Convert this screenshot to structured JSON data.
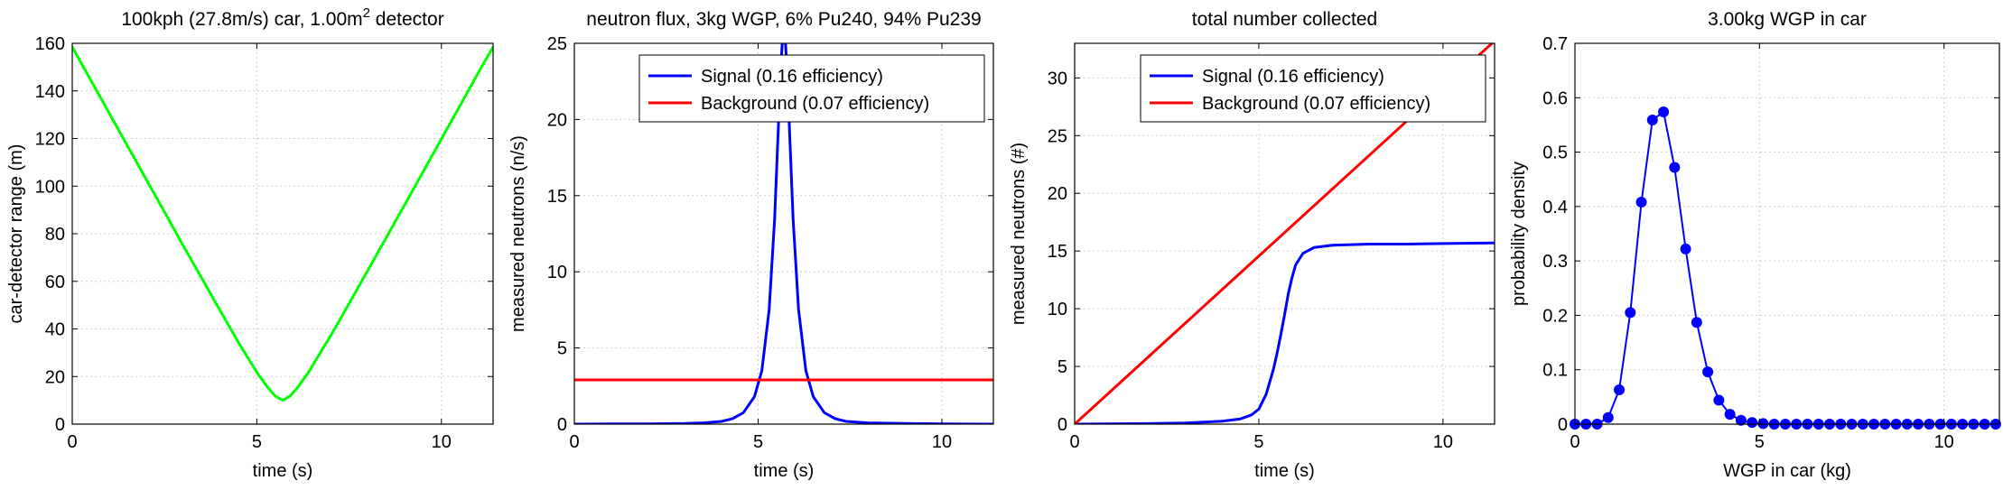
{
  "figure": {
    "background": "#ffffff"
  },
  "chart_data": [
    {
      "type": "line",
      "title": "100kph (27.8m/s) car,  1.00m",
      "title_superscript": "2",
      "title_suffix": " detector",
      "xlabel": "time (s)",
      "ylabel": "car-detector range (m)",
      "xlim": [
        0,
        11.4
      ],
      "ylim": [
        0,
        160
      ],
      "xticks": [
        0,
        5,
        10
      ],
      "yticks": [
        0,
        20,
        40,
        60,
        80,
        100,
        120,
        140,
        160
      ],
      "grid": true,
      "series": [
        {
          "color": "#00ff00",
          "x": [
            0,
            0.5,
            1,
            1.5,
            2,
            2.5,
            3,
            3.5,
            4,
            4.5,
            5,
            5.3,
            5.5,
            5.7,
            5.9,
            6.1,
            6.4,
            7,
            7.5,
            8,
            8.5,
            9,
            9.5,
            10,
            10.5,
            11,
            11.4
          ],
          "values": [
            158.5,
            144.6,
            130.7,
            116.8,
            102.9,
            89.1,
            75.2,
            61.5,
            47.9,
            34.4,
            21.8,
            15.3,
            11.8,
            10.0,
            11.8,
            15.3,
            21.8,
            37.1,
            50.7,
            64.4,
            78.2,
            92.0,
            105.9,
            119.8,
            133.7,
            147.6,
            158.5
          ]
        }
      ]
    },
    {
      "type": "line",
      "title": "neutron flux,  3kg WGP, 6% Pu240, 94% Pu239",
      "xlabel": "time (s)",
      "ylabel": "measured neutrons (n/s)",
      "xlim": [
        0,
        11.4
      ],
      "ylim": [
        0,
        25
      ],
      "xticks": [
        0,
        5,
        10
      ],
      "yticks": [
        0,
        5,
        10,
        15,
        20,
        25
      ],
      "grid": true,
      "legend_position": "top-right",
      "series": [
        {
          "name": "Signal (0.16 efficiency)",
          "color": "#0000ff",
          "x": [
            0,
            1,
            2,
            3,
            3.5,
            4,
            4.3,
            4.6,
            4.9,
            5.1,
            5.3,
            5.45,
            5.55,
            5.62,
            5.68,
            5.72,
            5.78,
            5.85,
            5.95,
            6.1,
            6.3,
            6.5,
            6.8,
            7.1,
            7.4,
            8,
            9,
            10,
            11.4
          ],
          "values": [
            0.0,
            0.01,
            0.02,
            0.04,
            0.08,
            0.18,
            0.35,
            0.75,
            1.8,
            3.5,
            7.5,
            13.5,
            19.5,
            23.5,
            26,
            26,
            23.5,
            19.5,
            13.5,
            7.5,
            3.5,
            1.8,
            0.75,
            0.35,
            0.18,
            0.08,
            0.04,
            0.02,
            0.0
          ]
        },
        {
          "name": "Background (0.07 efficiency)",
          "color": "#ff0000",
          "x": [
            0,
            11.4
          ],
          "values": [
            2.9,
            2.9
          ]
        }
      ]
    },
    {
      "type": "line",
      "title": "total number collected",
      "xlabel": "time (s)",
      "ylabel": "measured neutrons (#)",
      "xlim": [
        0,
        11.4
      ],
      "ylim": [
        0,
        33
      ],
      "xticks": [
        0,
        5,
        10
      ],
      "yticks": [
        0,
        5,
        10,
        15,
        20,
        25,
        30
      ],
      "grid": true,
      "legend_position": "top-right",
      "series": [
        {
          "name": "Signal (0.16 efficiency)",
          "color": "#0000ff",
          "x": [
            0,
            2,
            3,
            4,
            4.5,
            4.8,
            5.0,
            5.2,
            5.4,
            5.5,
            5.6,
            5.7,
            5.8,
            5.9,
            6.0,
            6.2,
            6.5,
            7,
            8,
            9,
            10,
            11.4
          ],
          "values": [
            0,
            0.05,
            0.1,
            0.25,
            0.45,
            0.8,
            1.3,
            2.6,
            4.8,
            6.2,
            7.8,
            9.5,
            11.3,
            12.7,
            13.8,
            14.8,
            15.3,
            15.5,
            15.6,
            15.6,
            15.65,
            15.7
          ]
        },
        {
          "name": "Background (0.07 efficiency)",
          "color": "#ff0000",
          "x": [
            0,
            11.4
          ],
          "values": [
            0,
            33.2
          ]
        }
      ]
    },
    {
      "type": "line",
      "title": "3.00kg WGP in car",
      "xlabel": "WGP in car (kg)",
      "ylabel": "probability density",
      "xlim": [
        0,
        11.5
      ],
      "ylim": [
        0,
        0.7
      ],
      "xticks": [
        0,
        5,
        10
      ],
      "yticks": [
        0,
        0.1,
        0.2,
        0.3,
        0.4,
        0.5,
        0.6,
        0.7
      ],
      "ytick_labels": [
        "0",
        "0.1",
        "0.2",
        "0.3",
        "0.4",
        "0.5",
        "0.6",
        "0.7"
      ],
      "grid": true,
      "markers": true,
      "series": [
        {
          "color": "#0000ff",
          "x": [
            0,
            0.3,
            0.6,
            0.9,
            1.2,
            1.5,
            1.8,
            2.1,
            2.4,
            2.7,
            3.0,
            3.3,
            3.6,
            3.9,
            4.2,
            4.5,
            4.8,
            5.1,
            5.4,
            5.7,
            6.0,
            6.3,
            6.6,
            6.9,
            7.2,
            7.5,
            7.8,
            8.1,
            8.4,
            8.7,
            9.0,
            9.3,
            9.6,
            9.9,
            10.2,
            10.5,
            10.8,
            11.1,
            11.4
          ],
          "values": [
            0,
            0,
            0,
            0.012,
            0.063,
            0.205,
            0.408,
            0.559,
            0.574,
            0.472,
            0.322,
            0.187,
            0.096,
            0.044,
            0.018,
            0.007,
            0.003,
            0.001,
            0,
            0,
            0,
            0,
            0,
            0,
            0,
            0,
            0,
            0,
            0,
            0,
            0,
            0,
            0,
            0,
            0,
            0,
            0,
            0,
            0
          ]
        }
      ]
    }
  ]
}
